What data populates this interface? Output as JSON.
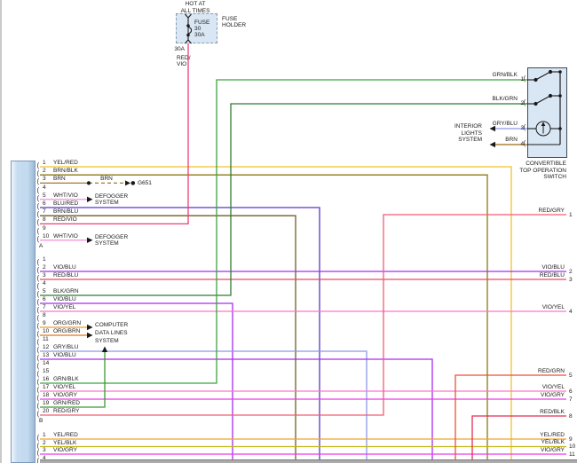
{
  "diagram": {
    "ui_colors": {
      "connector_fill": "#C3D9EE",
      "box_fill": "#D9E7F5",
      "line_black": "#1a1a1a"
    },
    "fuse": {
      "hot_at_lines": [
        "HOT AT",
        "ALL TIMES"
      ],
      "holder_lines": [
        "FUSE",
        "HOLDER"
      ],
      "fuse_label_lines": [
        "FUSE",
        "30",
        "30A"
      ],
      "amp_label": "30A",
      "wire_label_lines": [
        "RED/",
        "VIO"
      ],
      "wire_color": "#ED3F75"
    },
    "ground": {
      "wire_label": "BRN",
      "name": "G651"
    },
    "systems": {
      "defogger_lines": [
        "DEFOGGER",
        "SYSTEM"
      ],
      "computer_lines": [
        "COMPUTER",
        "DATA LINES",
        "SYSTEM"
      ],
      "interior_lines": [
        "INTERIOR",
        "LIGHTS",
        "SYSTEM"
      ]
    },
    "switch": {
      "title_lines": [
        "CONVERTIBLE",
        "TOP OPERATION",
        "SWITCH"
      ],
      "pins": [
        {
          "n": "1",
          "label": "GRN/BLK",
          "color": "#3FA23F"
        },
        {
          "n": "2",
          "label": "BLK/GRN",
          "color": "#2E7C2E"
        },
        {
          "n": "3",
          "label": "GRY/BLU",
          "color": "#8D97EA"
        },
        {
          "n": "4",
          "label": "BRN",
          "color": "#9A6A14"
        }
      ]
    },
    "connector": {
      "groups": [
        {
          "name": "A",
          "pins": [
            {
              "n": "1",
              "label": "YEL/RED",
              "color": "#F2C12E"
            },
            {
              "n": "2",
              "label": "BRN/BLK",
              "color": "#8A7A10"
            },
            {
              "n": "3",
              "label": "BRN",
              "color": "#A4762A"
            },
            {
              "n": "4",
              "label": ""
            },
            {
              "n": "5",
              "label": "WHT/VIO",
              "color": "#F598DC"
            },
            {
              "n": "6",
              "label": "BLU/RED",
              "color": "#5B33CC"
            },
            {
              "n": "7",
              "label": "BRN/BLU",
              "color": "#6F5C26"
            },
            {
              "n": "8",
              "label": "RED/VIO",
              "color": "#ED3F75"
            },
            {
              "n": "9",
              "label": ""
            },
            {
              "n": "10",
              "label": "WHT/VIO",
              "color": "#F598DC"
            }
          ]
        },
        {
          "name": "B",
          "pins": [
            {
              "n": "1",
              "label": ""
            },
            {
              "n": "2",
              "label": "VIO/BLU",
              "color": "#A62BF2"
            },
            {
              "n": "3",
              "label": "RED/BLU",
              "color": "#EE4763"
            },
            {
              "n": "4",
              "label": ""
            },
            {
              "n": "5",
              "label": "BLK/GRN",
              "color": "#2E7C2E"
            },
            {
              "n": "6",
              "label": "VIO/BLU",
              "color": "#A62BF2"
            },
            {
              "n": "7",
              "label": "VIO/YEL",
              "color": "#FF74CB"
            },
            {
              "n": "8",
              "label": ""
            },
            {
              "n": "9",
              "label": "ORG/GRN",
              "color": "#F29B2E"
            },
            {
              "n": "10",
              "label": "ORG/BRN",
              "color": "#E2761C"
            },
            {
              "n": "11",
              "label": ""
            },
            {
              "n": "12",
              "label": "GRY/BLU",
              "color": "#8D97EA"
            },
            {
              "n": "13",
              "label": "VIO/BLU",
              "color": "#A62BF2"
            },
            {
              "n": "14",
              "label": ""
            },
            {
              "n": "15",
              "label": ""
            },
            {
              "n": "16",
              "label": "GRN/BLK",
              "color": "#3FA23F"
            },
            {
              "n": "17",
              "label": "VIO/YEL",
              "color": "#FF74CB"
            },
            {
              "n": "18",
              "label": "VIO/GRY",
              "color": "#EA3BEA"
            },
            {
              "n": "19",
              "label": "GRN/RED",
              "color": "#3C9A30"
            },
            {
              "n": "20",
              "label": "RED/GRY",
              "color": "#F25C72"
            }
          ]
        },
        {
          "name": "",
          "pins": [
            {
              "n": "1",
              "label": "YEL/RED",
              "color": "#F2A42E"
            },
            {
              "n": "2",
              "label": "YEL/BLK",
              "color": "#C3BA1E"
            },
            {
              "n": "3",
              "label": "VIO/GRY",
              "color": "#EA3BEA"
            },
            {
              "n": "4",
              "label": ""
            }
          ]
        }
      ]
    },
    "right_exits": [
      {
        "n": "1",
        "label": "RED/GRY",
        "color": "#F25C72"
      },
      {
        "n": "2",
        "label": "VIO/BLU",
        "color": "#A62BF2"
      },
      {
        "n": "3",
        "label": "RED/BLU",
        "color": "#EE4763"
      },
      {
        "n": "4",
        "label": "VIO/YEL",
        "color": "#FF74CB"
      },
      {
        "n": "5",
        "label": "RED/GRN",
        "color": "#EA5237"
      },
      {
        "n": "6",
        "label": "VIO/YEL",
        "color": "#FF74CB"
      },
      {
        "n": "7",
        "label": "VIO/GRY",
        "color": "#EA3BEA"
      },
      {
        "n": "8",
        "label": "RED/BLK",
        "color": "#E22C50"
      },
      {
        "n": "9",
        "label": "YEL/RED",
        "color": "#F2A42E"
      },
      {
        "n": "10",
        "label": "YEL/BLK",
        "color": "#C3BA1E"
      },
      {
        "n": "11",
        "label": "VIO/GRY",
        "color": "#EA3BEA"
      }
    ]
  }
}
